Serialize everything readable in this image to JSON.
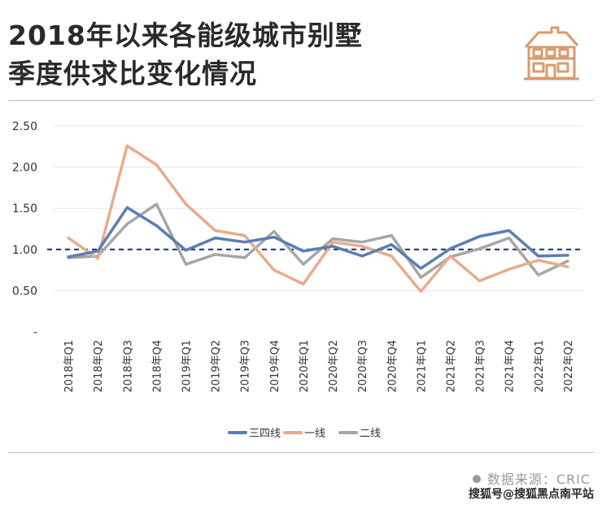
{
  "header": {
    "title_line1": "2018年以来各能级城市别墅",
    "title_line2": "季度供求比变化情况",
    "logo_icon": "house-icon",
    "logo_color": "#dc9a6c"
  },
  "footer": {
    "source": "数据来源：CRIC",
    "credit": "搜狐号@搜狐黑点南平站"
  },
  "chart_data": {
    "type": "line",
    "categories": [
      "2018年Q1",
      "2018年Q2",
      "2018年Q3",
      "2018年Q4",
      "2019年Q1",
      "2019年Q2",
      "2019年Q3",
      "2019年Q4",
      "2020年Q1",
      "2020年Q2",
      "2020年Q3",
      "2020年Q4",
      "2021年Q1",
      "2021年Q2",
      "2021年Q3",
      "2021年Q4",
      "2022年Q1",
      "2022年Q2"
    ],
    "y_ticks": [
      "2.50",
      "2.00",
      "1.50",
      "1.00",
      "0.50",
      "-"
    ],
    "ylim": [
      0,
      2.5
    ],
    "reference_line": 1.0,
    "grid": true,
    "legend_position": "bottom",
    "series": [
      {
        "name": "三四线",
        "color": "#5a7db5",
        "values": [
          0.91,
          0.98,
          1.51,
          1.29,
          0.99,
          1.14,
          1.09,
          1.15,
          0.98,
          1.04,
          0.92,
          1.06,
          0.77,
          1.01,
          1.16,
          1.23,
          0.92,
          0.93
        ]
      },
      {
        "name": "一线",
        "color": "#e9ab8b",
        "values": [
          1.14,
          0.89,
          2.26,
          2.03,
          1.55,
          1.23,
          1.17,
          0.75,
          0.58,
          1.09,
          1.04,
          0.92,
          0.49,
          0.92,
          0.62,
          0.76,
          0.87,
          0.79
        ]
      },
      {
        "name": "二线",
        "color": "#a6a6a6",
        "values": [
          0.9,
          0.92,
          1.31,
          1.55,
          0.82,
          0.94,
          0.9,
          1.22,
          0.82,
          1.13,
          1.09,
          1.17,
          0.66,
          0.91,
          1.01,
          1.14,
          0.69,
          0.86
        ]
      }
    ]
  }
}
